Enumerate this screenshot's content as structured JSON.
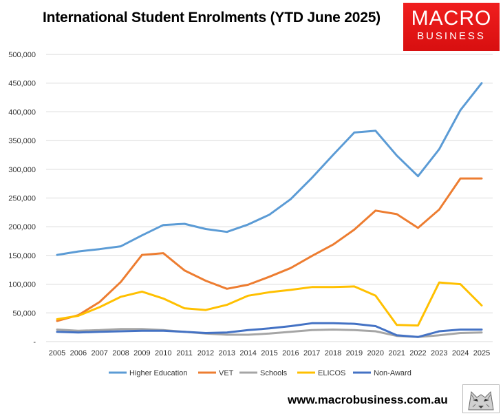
{
  "header": {
    "title": "International Student Enrolments (YTD June 2025)"
  },
  "logo": {
    "top": "MACRO",
    "bottom": "BUSINESS",
    "color": "#e0161a"
  },
  "footer": {
    "url": "www.macrobusiness.com.au",
    "emblem": "wolf-icon"
  },
  "chart_data": {
    "type": "line",
    "title": "International Student Enrolments (YTD June 2025)",
    "xlabel": "",
    "ylabel": "",
    "ylim": [
      0,
      500000
    ],
    "y_ticks": [
      0,
      50000,
      100000,
      150000,
      200000,
      250000,
      300000,
      350000,
      400000,
      450000,
      500000
    ],
    "y_tick_labels": [
      "-",
      "50,000",
      "100,000",
      "150,000",
      "200,000",
      "250,000",
      "300,000",
      "350,000",
      "400,000",
      "450,000",
      "500,000"
    ],
    "grid": true,
    "legend_position": "bottom",
    "categories": [
      "2005",
      "2006",
      "2007",
      "2008",
      "2009",
      "2010",
      "2011",
      "2012",
      "2013",
      "2014",
      "2015",
      "2016",
      "2017",
      "2018",
      "2019",
      "2020",
      "2021",
      "2022",
      "2023",
      "2024",
      "2025"
    ],
    "series": [
      {
        "name": "Higher Education",
        "color": "#5b9bd5",
        "values": [
          151000,
          157000,
          161000,
          166000,
          185000,
          203000,
          205000,
          196000,
          191000,
          204000,
          221000,
          248000,
          285000,
          325000,
          364000,
          367000,
          324000,
          288000,
          335000,
          403000,
          450000
        ]
      },
      {
        "name": "VET",
        "color": "#ed7d31",
        "values": [
          36000,
          46000,
          69000,
          104000,
          151000,
          154000,
          124000,
          106000,
          92000,
          99000,
          113000,
          128000,
          149000,
          169000,
          195000,
          228000,
          222000,
          198000,
          230000,
          284000,
          284000
        ]
      },
      {
        "name": "Schools",
        "color": "#a5a5a5",
        "values": [
          21000,
          19000,
          20000,
          22000,
          22000,
          20000,
          17000,
          14000,
          12000,
          12000,
          14000,
          17000,
          20000,
          21000,
          20000,
          18000,
          10000,
          8000,
          11000,
          15000,
          16000
        ]
      },
      {
        "name": "ELICOS",
        "color": "#ffc000",
        "values": [
          39000,
          45000,
          60000,
          78000,
          87000,
          75000,
          58000,
          55000,
          64000,
          80000,
          86000,
          90000,
          95000,
          95000,
          96000,
          80000,
          29000,
          28000,
          103000,
          100000,
          63000
        ]
      },
      {
        "name": "Non-Award",
        "color": "#4472c4",
        "values": [
          17000,
          16000,
          17000,
          18000,
          19000,
          19000,
          17000,
          15000,
          16000,
          20000,
          23000,
          27000,
          32000,
          32000,
          31000,
          27000,
          11000,
          8000,
          18000,
          21000,
          21000
        ]
      }
    ]
  }
}
